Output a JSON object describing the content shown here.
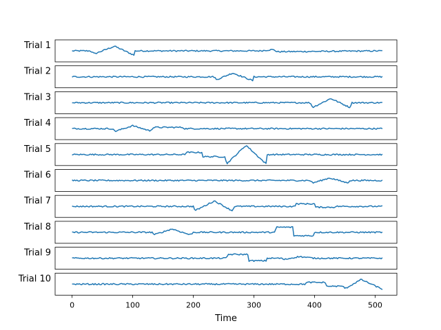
{
  "chart_data": {
    "type": "line",
    "xlabel": "Time",
    "xlim": [
      -28,
      536
    ],
    "xticks": [
      0,
      100,
      200,
      300,
      400,
      500
    ],
    "line_color": "#1f77b4",
    "panel_ylim": [
      -1.3,
      1.3
    ],
    "noise_note_shown": false,
    "series": [
      {
        "name": "Trial 1",
        "points": [
          [
            0,
            0
          ],
          [
            30,
            0
          ],
          [
            37,
            -0.35
          ],
          [
            70,
            0.55
          ],
          [
            102,
            -0.5
          ],
          [
            103,
            0
          ],
          [
            310,
            0
          ],
          [
            330,
            0.15
          ],
          [
            334,
            0.1
          ],
          [
            338,
            -0.1
          ],
          [
            512,
            0
          ]
        ]
      },
      {
        "name": "Trial 2",
        "points": [
          [
            0,
            0
          ],
          [
            235,
            0
          ],
          [
            238,
            -0.35
          ],
          [
            265,
            0.45
          ],
          [
            298,
            -0.45
          ],
          [
            300,
            0
          ],
          [
            512,
            0
          ]
        ]
      },
      {
        "name": "Trial 3",
        "points": [
          [
            0,
            0
          ],
          [
            393,
            0
          ],
          [
            397,
            -0.55
          ],
          [
            427,
            0.5
          ],
          [
            458,
            -0.55
          ],
          [
            462,
            0
          ],
          [
            512,
            0
          ]
        ]
      },
      {
        "name": "Trial 4",
        "points": [
          [
            0,
            0
          ],
          [
            65,
            0
          ],
          [
            72,
            -0.3
          ],
          [
            100,
            0.35
          ],
          [
            128,
            -0.25
          ],
          [
            135,
            0.15
          ],
          [
            182,
            0.15
          ],
          [
            186,
            0
          ],
          [
            512,
            0
          ]
        ]
      },
      {
        "name": "Trial 5",
        "points": [
          [
            0,
            0
          ],
          [
            185,
            0
          ],
          [
            190,
            0.25
          ],
          [
            215,
            0.25
          ],
          [
            216,
            -0.25
          ],
          [
            252,
            -0.25
          ],
          [
            255,
            -1.1
          ],
          [
            287,
            1.1
          ],
          [
            320,
            -1.1
          ],
          [
            322,
            0
          ],
          [
            512,
            0
          ]
        ]
      },
      {
        "name": "Trial 6",
        "points": [
          [
            0,
            0
          ],
          [
            393,
            0
          ],
          [
            397,
            -0.3
          ],
          [
            425,
            0.3
          ],
          [
            455,
            -0.3
          ],
          [
            458,
            0
          ],
          [
            512,
            0
          ]
        ]
      },
      {
        "name": "Trial 7",
        "points": [
          [
            0,
            0
          ],
          [
            200,
            0
          ],
          [
            203,
            -0.5
          ],
          [
            235,
            0.65
          ],
          [
            265,
            -0.55
          ],
          [
            267,
            0
          ],
          [
            367,
            0
          ],
          [
            370,
            0.3
          ],
          [
            400,
            0.3
          ],
          [
            401,
            -0.1
          ],
          [
            432,
            -0.1
          ],
          [
            435,
            0
          ],
          [
            512,
            0
          ]
        ]
      },
      {
        "name": "Trial 8",
        "points": [
          [
            0,
            0
          ],
          [
            133,
            0
          ],
          [
            135,
            -0.3
          ],
          [
            165,
            0.4
          ],
          [
            195,
            -0.3
          ],
          [
            200,
            0
          ],
          [
            335,
            0
          ],
          [
            337,
            0.6
          ],
          [
            364,
            0.6
          ],
          [
            365,
            -0.4
          ],
          [
            398,
            -0.4
          ],
          [
            400,
            0
          ],
          [
            512,
            0
          ]
        ]
      },
      {
        "name": "Trial 9",
        "points": [
          [
            0,
            0
          ],
          [
            255,
            0
          ],
          [
            257,
            0.45
          ],
          [
            290,
            0.45
          ],
          [
            292,
            -0.3
          ],
          [
            320,
            -0.3
          ],
          [
            322,
            0
          ],
          [
            345,
            0
          ],
          [
            350,
            -0.15
          ],
          [
            375,
            0.2
          ],
          [
            380,
            0.15
          ],
          [
            400,
            0
          ],
          [
            512,
            0
          ]
        ]
      },
      {
        "name": "Trial 10",
        "points": [
          [
            0,
            0
          ],
          [
            385,
            0
          ],
          [
            387,
            0.2
          ],
          [
            418,
            0.2
          ],
          [
            419,
            -0.25
          ],
          [
            448,
            -0.25
          ],
          [
            450,
            -0.55
          ],
          [
            477,
            0.55
          ],
          [
            512,
            -0.6
          ]
        ]
      }
    ]
  }
}
